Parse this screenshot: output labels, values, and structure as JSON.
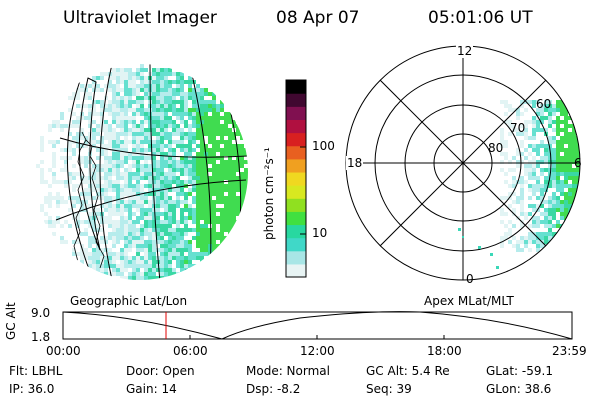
{
  "header": {
    "instrument": "Ultraviolet Imager",
    "date": "08 Apr 07",
    "time": "05:01:06 UT"
  },
  "colors": {
    "colorbar_stops": [
      "#e8f4f4",
      "#a8e6e6",
      "#40d8c8",
      "#28d8a0",
      "#40e040",
      "#90e020",
      "#d8e820",
      "#f0d820",
      "#f0a020",
      "#e86020",
      "#d82020",
      "#b01040",
      "#801050",
      "#400830",
      "#000000"
    ],
    "image_tint": [
      "#ffffff",
      "#e2f4f4",
      "#b6ecec",
      "#66e0d0",
      "#3ad8a4",
      "#40dc50"
    ]
  },
  "colorbar": {
    "unit_label": "photon cm⁻²s⁻¹",
    "ticks": [
      "100",
      "10"
    ],
    "scale": "log"
  },
  "globe_panel": {
    "label": "Geographic Lat/Lon"
  },
  "polar_panel": {
    "label": "Apex  MLat/MLT",
    "mlt_labels": [
      "12",
      "18",
      "6",
      "0"
    ],
    "mlat_labels": [
      "60",
      "70",
      "80"
    ]
  },
  "altitude_plot": {
    "ylabel": "GC Alt",
    "yticks": [
      "9.0",
      "1.8"
    ],
    "xticks": [
      "00:00",
      "06:00",
      "12:00",
      "18:00",
      "23:59"
    ],
    "cursor_time": "05:01"
  },
  "info": {
    "flt": "Flt: LBHL",
    "ip": "IP: 36.0",
    "door": "Door: Open",
    "gain": "Gain: 14",
    "mode": "Mode: Normal",
    "dsp": "Dsp:    -8.2",
    "gc_alt": "GC Alt: 5.4 Re",
    "seq": "Seq: 39",
    "glat": "GLat: -59.1",
    "glon": "GLon:  38.6"
  }
}
